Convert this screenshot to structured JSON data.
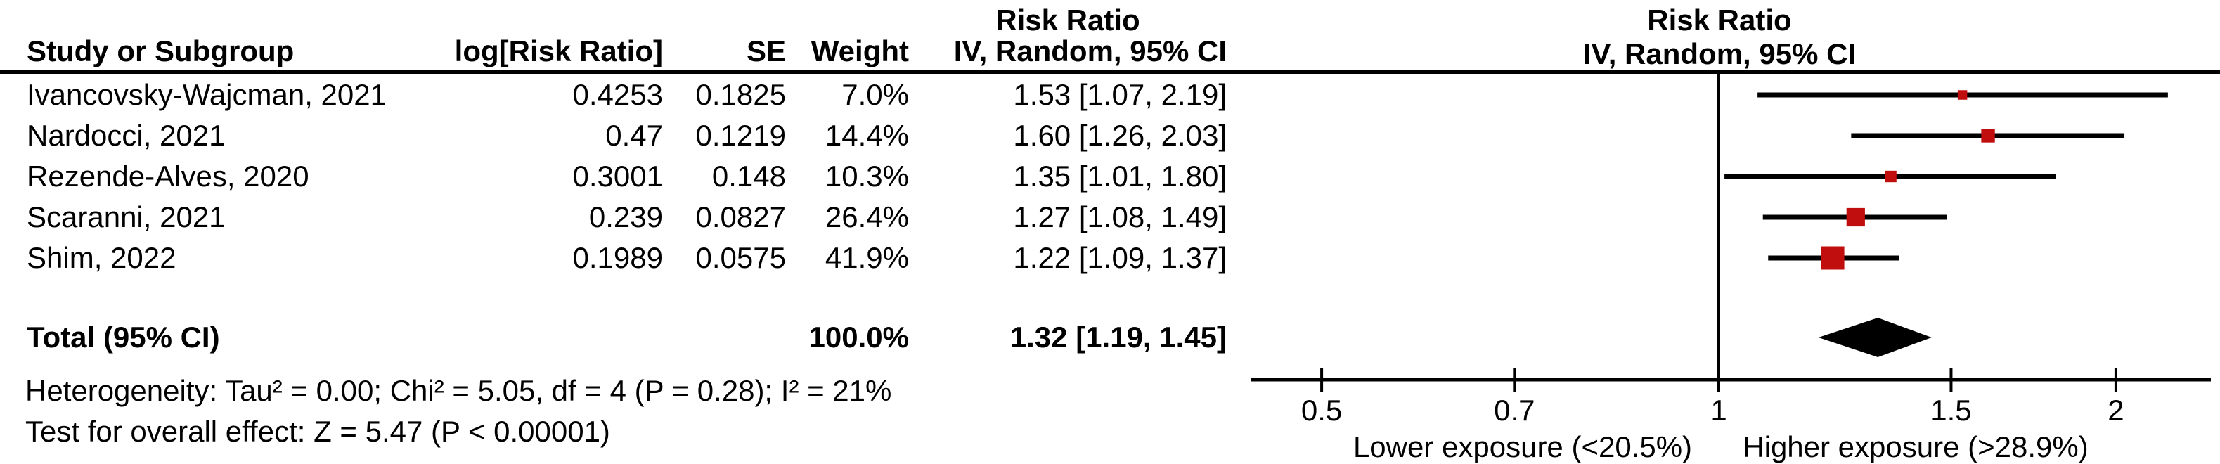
{
  "table": {
    "headers": {
      "effect_top_left": "Risk Ratio",
      "study": "Study or Subgroup",
      "log_rr": "log[Risk Ratio]",
      "se": "SE",
      "weight": "Weight",
      "ci": "IV, Random, 95% CI"
    },
    "total_row": {
      "label": "Total (95% CI)",
      "weight": "100.0%",
      "ci": "1.32 [1.19, 1.45]"
    },
    "footnotes": {
      "heterogeneity": "Heterogeneity: Tau² = 0.00; Chi² = 5.05, df = 4 (P = 0.28); I² = 21%",
      "overall_effect": "Test for overall effect: Z = 5.47 (P < 0.00001)"
    }
  },
  "plot_header": {
    "effect_top_right": "Risk Ratio",
    "model_right": "IV, Random, 95% CI"
  },
  "chart_data": {
    "type": "forest",
    "effect_measure": "Risk Ratio",
    "model": "IV, Random, 95% CI",
    "studies": [
      {
        "name": "Ivancovsky-Wajcman, 2021",
        "log_rr": "0.4253",
        "se": "0.1825",
        "weight": "7.0%",
        "weight_pct": 7.0,
        "rr": 1.53,
        "ci_low": 1.07,
        "ci_high": 2.19,
        "ci_text": "1.53 [1.07, 2.19]"
      },
      {
        "name": "Nardocci, 2021",
        "log_rr": "0.47",
        "se": "0.1219",
        "weight": "14.4%",
        "weight_pct": 14.4,
        "rr": 1.6,
        "ci_low": 1.26,
        "ci_high": 2.03,
        "ci_text": "1.60 [1.26, 2.03]"
      },
      {
        "name": "Rezende-Alves, 2020",
        "log_rr": "0.3001",
        "se": "0.148",
        "weight": "10.3%",
        "weight_pct": 10.3,
        "rr": 1.35,
        "ci_low": 1.01,
        "ci_high": 1.8,
        "ci_text": "1.35 [1.01, 1.80]"
      },
      {
        "name": "Scaranni, 2021",
        "log_rr": "0.239",
        "se": "0.0827",
        "weight": "26.4%",
        "weight_pct": 26.4,
        "rr": 1.27,
        "ci_low": 1.08,
        "ci_high": 1.49,
        "ci_text": "1.27 [1.08, 1.49]"
      },
      {
        "name": "Shim, 2022",
        "log_rr": "0.1989",
        "se": "0.0575",
        "weight": "41.9%",
        "weight_pct": 41.9,
        "rr": 1.22,
        "ci_low": 1.09,
        "ci_high": 1.37,
        "ci_text": "1.22 [1.09, 1.37]"
      }
    ],
    "total": {
      "rr": 1.32,
      "ci_low": 1.19,
      "ci_high": 1.45
    },
    "axis": {
      "scale": "log",
      "ticks": [
        0.5,
        0.7,
        1,
        1.5,
        2
      ],
      "tick_labels": [
        "0.5",
        "0.7",
        "1",
        "1.5",
        "2"
      ],
      "null_value": 1,
      "label_left": "Lower exposure (<20.5%)",
      "label_right": "Higher exposure (>28.9%)"
    },
    "colors": {
      "square": "#C00D0D",
      "line": "#000000",
      "diamond": "#000000",
      "text": "#000000"
    }
  }
}
